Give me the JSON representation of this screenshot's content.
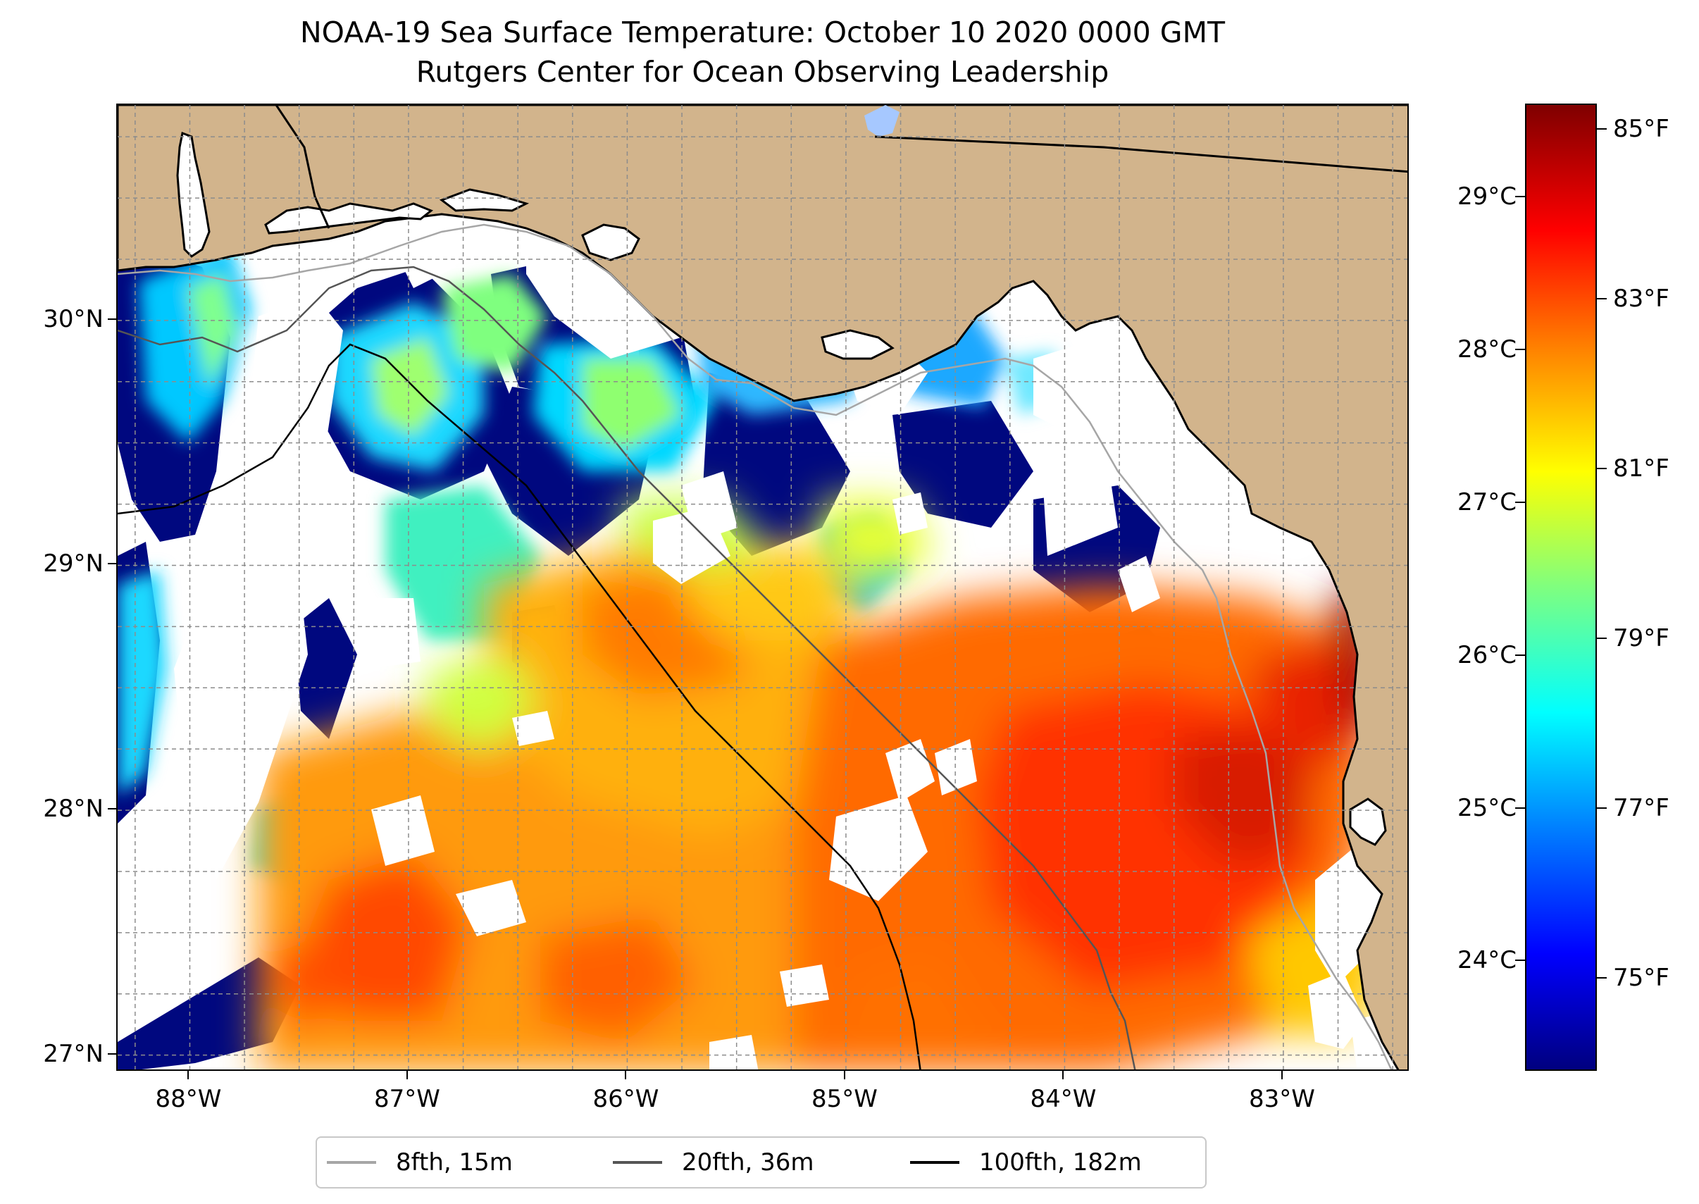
{
  "title": "NOAA-19 Sea Surface Temperature: October 10 2020 0000 GMT",
  "subtitle": "Rutgers Center for Ocean Observing Leadership",
  "map": {
    "extent": {
      "lon_min": -88.33,
      "lon_max": -82.42,
      "lat_min": 26.93,
      "lat_max": 30.88
    },
    "gridlines": true,
    "land_color": "#d2b48c",
    "lat_ticks": [
      {
        "value": 30,
        "label": "30°N"
      },
      {
        "value": 29,
        "label": "29°N"
      },
      {
        "value": 28,
        "label": "28°N"
      },
      {
        "value": 27,
        "label": "27°N"
      }
    ],
    "lon_ticks": [
      {
        "value": -88,
        "label": "88°W"
      },
      {
        "value": -87,
        "label": "87°W"
      },
      {
        "value": -86,
        "label": "86°W"
      },
      {
        "value": -85,
        "label": "85°W"
      },
      {
        "value": -84,
        "label": "84°W"
      },
      {
        "value": -83,
        "label": "83°W"
      }
    ]
  },
  "colorbar": {
    "colormap": "jet",
    "range_f": [
      73.9,
      85.3
    ],
    "celsius_ticks": [
      "29°C",
      "28°C",
      "27°C",
      "26°C",
      "25°C",
      "24°C"
    ],
    "fahrenheit_ticks": [
      "85°F",
      "83°F",
      "81°F",
      "79°F",
      "77°F",
      "75°F"
    ]
  },
  "legend": {
    "items": [
      {
        "label": "8fth, 15m",
        "color": "#a6a6a6"
      },
      {
        "label": "20fth, 36m",
        "color": "#555555"
      },
      {
        "label": "100fth, 182m",
        "color": "#000000"
      }
    ]
  }
}
